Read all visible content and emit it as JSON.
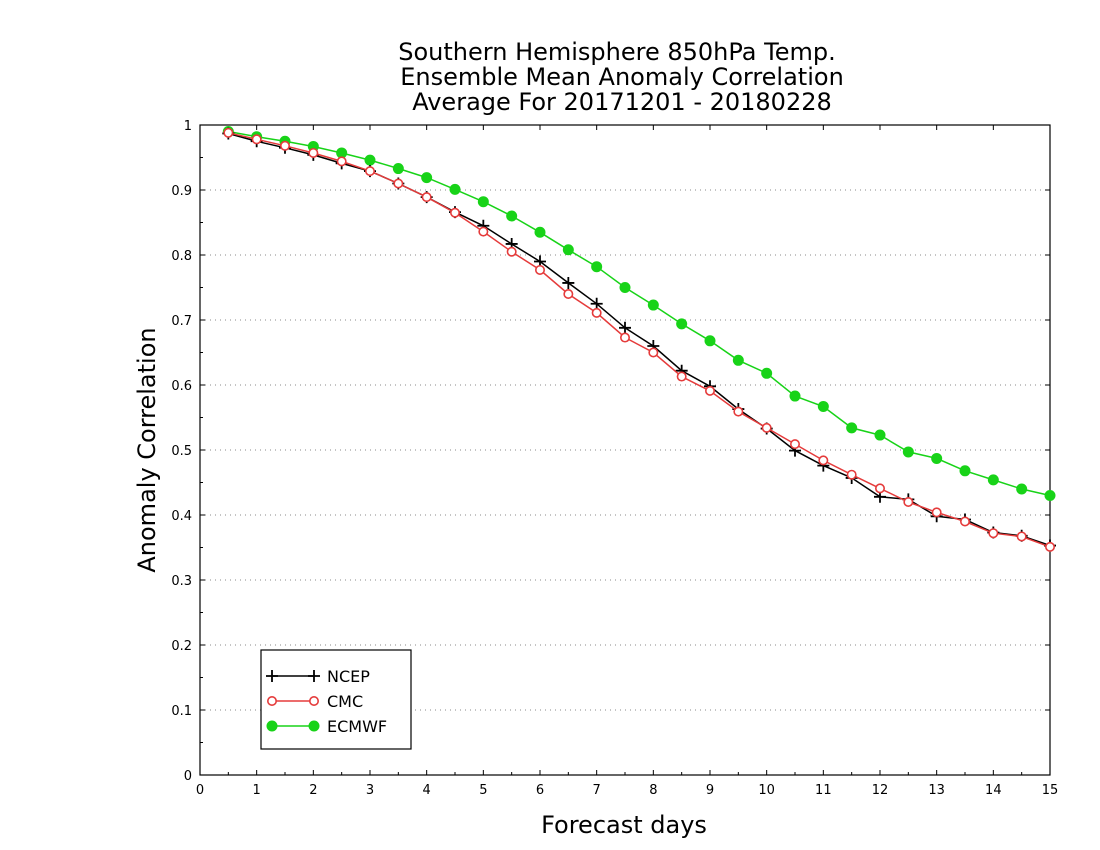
{
  "chart_data": {
    "type": "line",
    "title": [
      "Southern Hemisphere 850hPa Temp.",
      "Ensemble Mean Anomaly Correlation",
      "Average For 20171201 - 20180228"
    ],
    "xlabel": "Forecast days",
    "ylabel": "Anomaly Correlation",
    "xlim": [
      0,
      15
    ],
    "ylim": [
      0,
      1
    ],
    "xticks": [
      "0",
      "1",
      "2",
      "3",
      "4",
      "5",
      "6",
      "7",
      "8",
      "9",
      "10",
      "11",
      "12",
      "13",
      "14",
      "15"
    ],
    "yticks": [
      "0",
      "0.1",
      "0.2",
      "0.3",
      "0.4",
      "0.5",
      "0.6",
      "0.7",
      "0.8",
      "0.9",
      "1"
    ],
    "grid": "horizontal dotted",
    "legend_position": "bottom-left",
    "x": [
      0.5,
      1,
      1.5,
      2,
      2.5,
      3,
      3.5,
      4,
      4.5,
      5,
      5.5,
      6,
      6.5,
      7,
      7.5,
      8,
      8.5,
      9,
      9.5,
      10,
      10.5,
      11,
      11.5,
      12,
      12.5,
      13,
      13.5,
      14,
      14.5,
      15
    ],
    "series": [
      {
        "name": "NCEP",
        "color": "#000000",
        "marker": "plus",
        "values": [
          0.987,
          0.975,
          0.965,
          0.954,
          0.941,
          0.929,
          0.91,
          0.889,
          0.866,
          0.845,
          0.817,
          0.79,
          0.757,
          0.725,
          0.688,
          0.66,
          0.622,
          0.598,
          0.563,
          0.533,
          0.499,
          0.476,
          0.457,
          0.428,
          0.424,
          0.398,
          0.393,
          0.373,
          0.368,
          0.353
        ]
      },
      {
        "name": "CMC",
        "color": "#e53b3b",
        "marker": "open-circle",
        "values": [
          0.988,
          0.978,
          0.968,
          0.957,
          0.944,
          0.929,
          0.91,
          0.889,
          0.865,
          0.836,
          0.805,
          0.777,
          0.74,
          0.711,
          0.673,
          0.65,
          0.613,
          0.591,
          0.559,
          0.534,
          0.509,
          0.484,
          0.462,
          0.441,
          0.42,
          0.404,
          0.39,
          0.372,
          0.367,
          0.351
        ]
      },
      {
        "name": "ECMWF",
        "color": "#18d318",
        "marker": "filled-circle",
        "values": [
          0.99,
          0.982,
          0.975,
          0.967,
          0.957,
          0.946,
          0.933,
          0.919,
          0.901,
          0.882,
          0.86,
          0.835,
          0.808,
          0.782,
          0.75,
          0.723,
          0.694,
          0.668,
          0.638,
          0.618,
          0.583,
          0.567,
          0.534,
          0.523,
          0.497,
          0.487,
          0.468,
          0.454,
          0.44,
          0.43
        ]
      }
    ]
  }
}
